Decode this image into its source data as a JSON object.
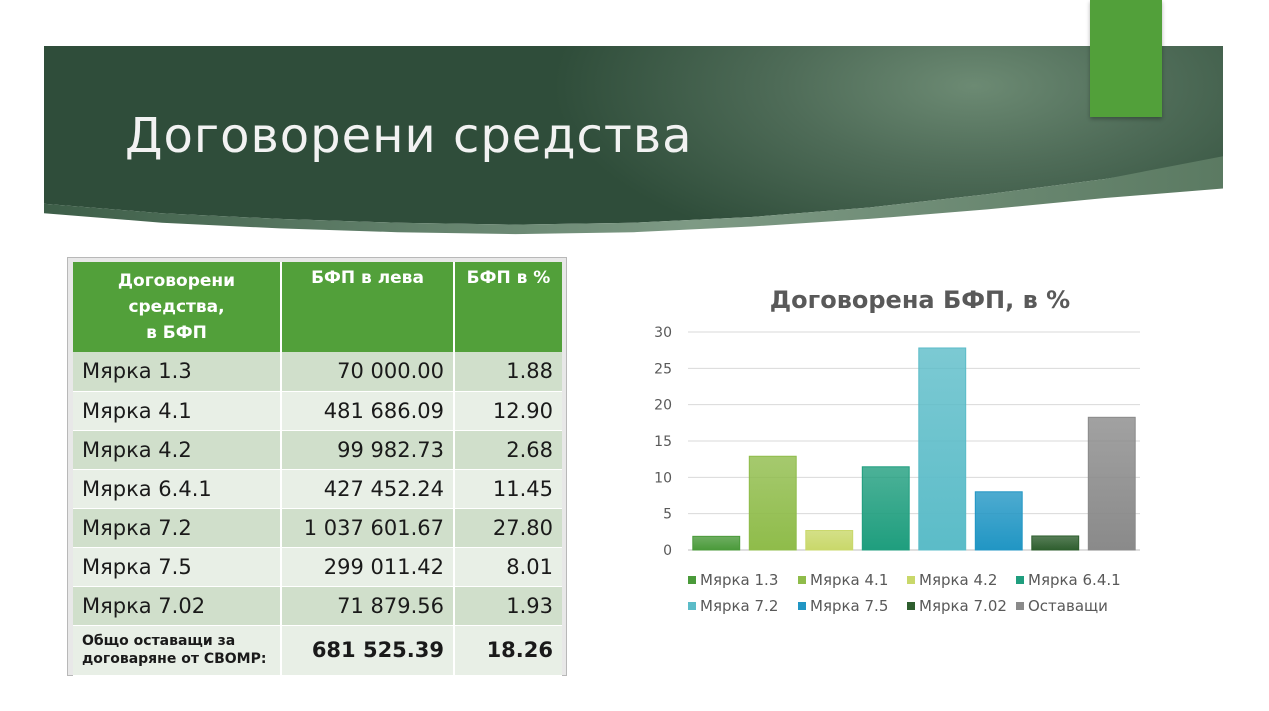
{
  "slide": {
    "title": "Договорени средства"
  },
  "table": {
    "headers": [
      "Договорени средства,\nв БФП",
      "БФП в лева",
      "БФП в %"
    ],
    "rows": [
      [
        "Мярка 1.3",
        "70 000.00",
        "1.88"
      ],
      [
        "Мярка 4.1",
        "481 686.09",
        "12.90"
      ],
      [
        "Мярка 4.2",
        "99 982.73",
        "2.68"
      ],
      [
        "Мярка 6.4.1",
        "427 452.24",
        "11.45"
      ],
      [
        "Мярка 7.2",
        "1 037 601.67",
        "27.80"
      ],
      [
        "Мярка 7.5",
        "299 011.42",
        "8.01"
      ],
      [
        "Мярка 7.02",
        "71 879.56",
        "1.93"
      ]
    ],
    "total": [
      "Общо оставащи за договаряне от СВОМР:",
      "681 525.39",
      "18.26"
    ]
  },
  "colors": {
    "accent_green": "#52a03a",
    "banner": "#3a5a45"
  },
  "chart_data": {
    "type": "bar",
    "title": "Договорена БФП, в %",
    "categories": [
      "Мярка 1.3",
      "Мярка 4.1",
      "Мярка 4.2",
      "Мярка 6.4.1",
      "Мярка 7.2",
      "Мярка 7.5",
      "Мярка 7.02",
      "Оставащи"
    ],
    "values": [
      1.88,
      12.9,
      2.68,
      11.45,
      27.8,
      8.01,
      1.93,
      18.26
    ],
    "colors": [
      "#4a9a3a",
      "#8fbc4a",
      "#c9d86a",
      "#1f9e7e",
      "#5bbcc8",
      "#2196c4",
      "#2e5e2e",
      "#8a8a8a"
    ],
    "ylim": [
      0,
      30
    ],
    "yticks": [
      0,
      5,
      10,
      15,
      20,
      25,
      30
    ],
    "grid": true,
    "legend": "bottom"
  }
}
